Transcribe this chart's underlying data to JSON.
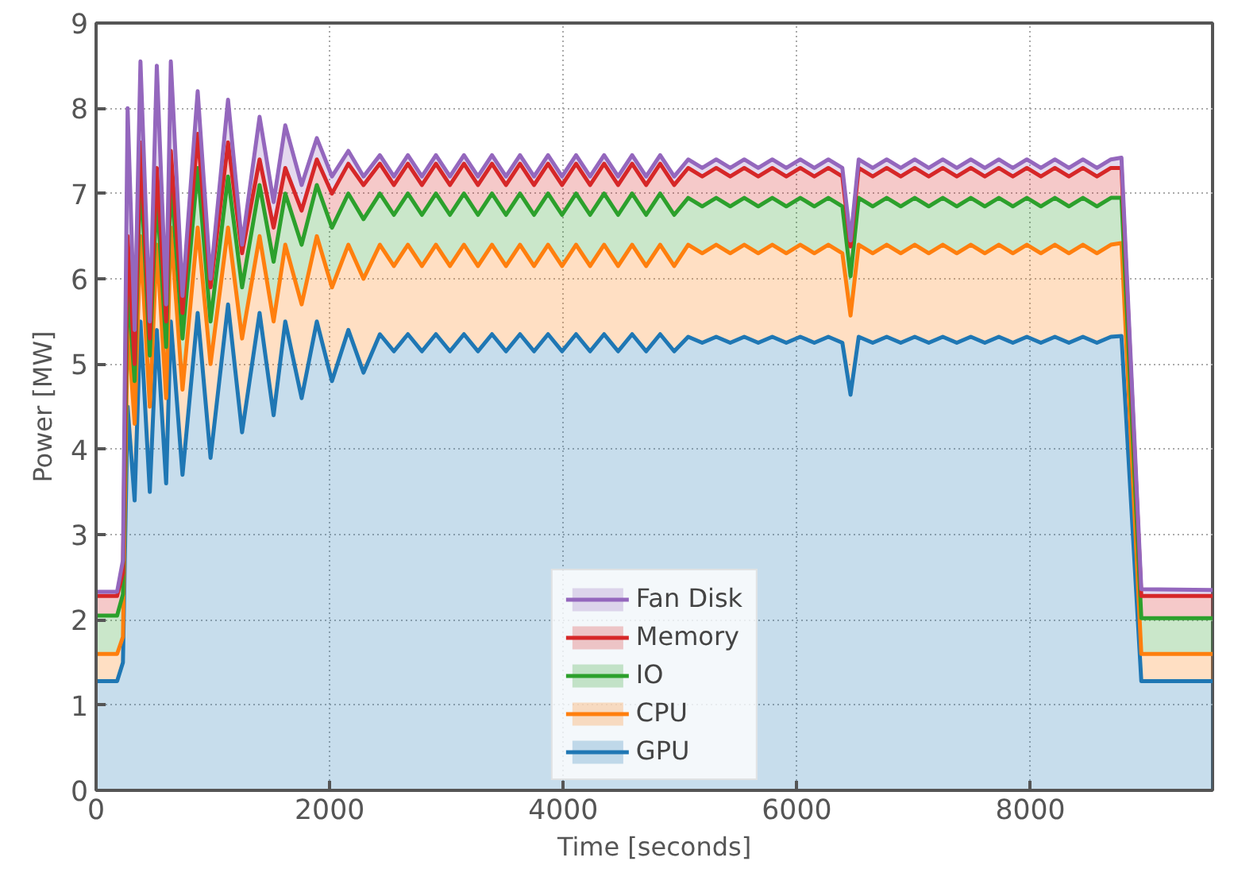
{
  "chart_data": {
    "type": "area",
    "stacked": true,
    "xlabel": "Time [seconds]",
    "ylabel": "Power [MW]",
    "xlim": [
      0,
      9560
    ],
    "ylim": [
      0,
      9
    ],
    "xticks": [
      0,
      2000,
      4000,
      6000,
      8000
    ],
    "yticks": [
      0,
      1,
      2,
      3,
      4,
      5,
      6,
      7,
      8,
      9
    ],
    "grid": true,
    "legend": "bottom",
    "x": [
      0,
      180,
      230,
      270,
      330,
      380,
      460,
      520,
      600,
      640,
      740,
      870,
      980,
      1130,
      1250,
      1400,
      1520,
      1620,
      1760,
      1890,
      2020,
      2160,
      2290,
      2430,
      2550,
      2670,
      2790,
      2910,
      3030,
      3150,
      3270,
      3390,
      3510,
      3630,
      3750,
      3870,
      3990,
      4110,
      4230,
      4350,
      4470,
      4590,
      4710,
      4830,
      4950,
      5070,
      5190,
      5310,
      5430,
      5550,
      5670,
      5790,
      5910,
      6030,
      6150,
      6270,
      6390,
      6460,
      6530,
      6650,
      6770,
      6890,
      7010,
      7130,
      7250,
      7370,
      7490,
      7610,
      7730,
      7850,
      7970,
      8090,
      8210,
      8330,
      8450,
      8570,
      8690,
      8780,
      8950,
      9560
    ],
    "series": [
      {
        "name": "GPU",
        "color": "#1f77b4",
        "values": [
          1.28,
          1.28,
          1.5,
          4.5,
          3.4,
          5.5,
          3.5,
          5.4,
          3.6,
          5.5,
          3.7,
          5.6,
          3.9,
          5.7,
          4.2,
          5.6,
          4.4,
          5.5,
          4.6,
          5.5,
          4.8,
          5.4,
          4.9,
          5.35,
          5.15,
          5.35,
          5.15,
          5.35,
          5.15,
          5.35,
          5.15,
          5.35,
          5.15,
          5.35,
          5.15,
          5.35,
          5.15,
          5.35,
          5.15,
          5.35,
          5.15,
          5.35,
          5.15,
          5.35,
          5.15,
          5.32,
          5.25,
          5.32,
          5.25,
          5.32,
          5.25,
          5.32,
          5.25,
          5.32,
          5.25,
          5.32,
          5.25,
          4.64,
          5.32,
          5.25,
          5.32,
          5.25,
          5.32,
          5.25,
          5.32,
          5.25,
          5.32,
          5.25,
          5.32,
          5.25,
          5.32,
          5.25,
          5.32,
          5.25,
          5.32,
          5.25,
          5.32,
          5.33,
          1.28,
          1.28
        ]
      },
      {
        "name": "CPU",
        "color": "#ff7f0e",
        "values": [
          0.32,
          0.32,
          0.3,
          1.0,
          0.9,
          1.0,
          1.0,
          1.0,
          1.0,
          1.1,
          1.0,
          1.0,
          1.1,
          0.9,
          1.1,
          0.9,
          1.1,
          0.9,
          1.1,
          1.0,
          1.1,
          1.0,
          1.1,
          1.05,
          1.0,
          1.05,
          1.0,
          1.05,
          1.0,
          1.05,
          1.0,
          1.05,
          1.0,
          1.05,
          1.0,
          1.05,
          1.0,
          1.05,
          1.0,
          1.05,
          1.0,
          1.05,
          1.0,
          1.05,
          1.0,
          1.08,
          1.05,
          1.08,
          1.05,
          1.08,
          1.05,
          1.08,
          1.05,
          1.08,
          1.05,
          1.08,
          1.05,
          0.93,
          1.08,
          1.05,
          1.08,
          1.05,
          1.08,
          1.05,
          1.08,
          1.05,
          1.08,
          1.05,
          1.08,
          1.05,
          1.08,
          1.05,
          1.08,
          1.05,
          1.08,
          1.05,
          1.08,
          1.09,
          0.32,
          0.32
        ]
      },
      {
        "name": "IO",
        "color": "#2ca02c",
        "values": [
          0.45,
          0.45,
          0.5,
          0.5,
          0.5,
          0.8,
          0.6,
          0.6,
          0.6,
          0.6,
          0.6,
          0.7,
          0.5,
          0.6,
          0.6,
          0.6,
          0.7,
          0.6,
          0.7,
          0.6,
          0.7,
          0.6,
          0.7,
          0.6,
          0.6,
          0.6,
          0.6,
          0.6,
          0.6,
          0.6,
          0.6,
          0.6,
          0.6,
          0.6,
          0.6,
          0.6,
          0.6,
          0.6,
          0.6,
          0.6,
          0.6,
          0.6,
          0.6,
          0.6,
          0.6,
          0.55,
          0.55,
          0.55,
          0.55,
          0.55,
          0.55,
          0.55,
          0.55,
          0.55,
          0.55,
          0.55,
          0.55,
          0.46,
          0.55,
          0.55,
          0.55,
          0.55,
          0.55,
          0.55,
          0.55,
          0.55,
          0.55,
          0.55,
          0.55,
          0.55,
          0.55,
          0.55,
          0.55,
          0.55,
          0.55,
          0.55,
          0.55,
          0.53,
          0.42,
          0.42
        ]
      },
      {
        "name": "Memory",
        "color": "#d62728",
        "values": [
          0.23,
          0.23,
          0.25,
          0.5,
          0.2,
          0.3,
          0.2,
          0.3,
          0.3,
          0.3,
          0.3,
          0.4,
          0.4,
          0.4,
          0.4,
          0.3,
          0.4,
          0.3,
          0.4,
          0.3,
          0.4,
          0.35,
          0.4,
          0.35,
          0.35,
          0.35,
          0.35,
          0.35,
          0.35,
          0.35,
          0.35,
          0.35,
          0.35,
          0.35,
          0.35,
          0.35,
          0.35,
          0.35,
          0.35,
          0.35,
          0.35,
          0.35,
          0.35,
          0.35,
          0.35,
          0.35,
          0.35,
          0.35,
          0.35,
          0.35,
          0.35,
          0.35,
          0.35,
          0.35,
          0.35,
          0.35,
          0.35,
          0.35,
          0.35,
          0.35,
          0.35,
          0.35,
          0.35,
          0.35,
          0.35,
          0.35,
          0.35,
          0.35,
          0.35,
          0.35,
          0.35,
          0.35,
          0.35,
          0.35,
          0.35,
          0.35,
          0.35,
          0.35,
          0.26,
          0.26
        ]
      },
      {
        "name": "Fan Disk",
        "color": "#9467bd",
        "values": [
          0.05,
          0.05,
          0.15,
          1.5,
          0.4,
          0.95,
          0.2,
          1.2,
          0.2,
          1.05,
          0.2,
          0.5,
          0.1,
          0.5,
          0.1,
          0.5,
          0.3,
          0.5,
          0.3,
          0.25,
          0.2,
          0.15,
          0.1,
          0.1,
          0.1,
          0.1,
          0.1,
          0.1,
          0.1,
          0.1,
          0.1,
          0.1,
          0.1,
          0.1,
          0.1,
          0.1,
          0.1,
          0.1,
          0.1,
          0.1,
          0.1,
          0.1,
          0.1,
          0.1,
          0.1,
          0.1,
          0.1,
          0.1,
          0.1,
          0.1,
          0.1,
          0.1,
          0.1,
          0.1,
          0.1,
          0.1,
          0.1,
          0.07,
          0.1,
          0.1,
          0.1,
          0.1,
          0.1,
          0.1,
          0.1,
          0.1,
          0.1,
          0.1,
          0.1,
          0.1,
          0.1,
          0.1,
          0.1,
          0.1,
          0.1,
          0.1,
          0.1,
          0.12,
          0.08,
          0.07
        ]
      }
    ]
  }
}
